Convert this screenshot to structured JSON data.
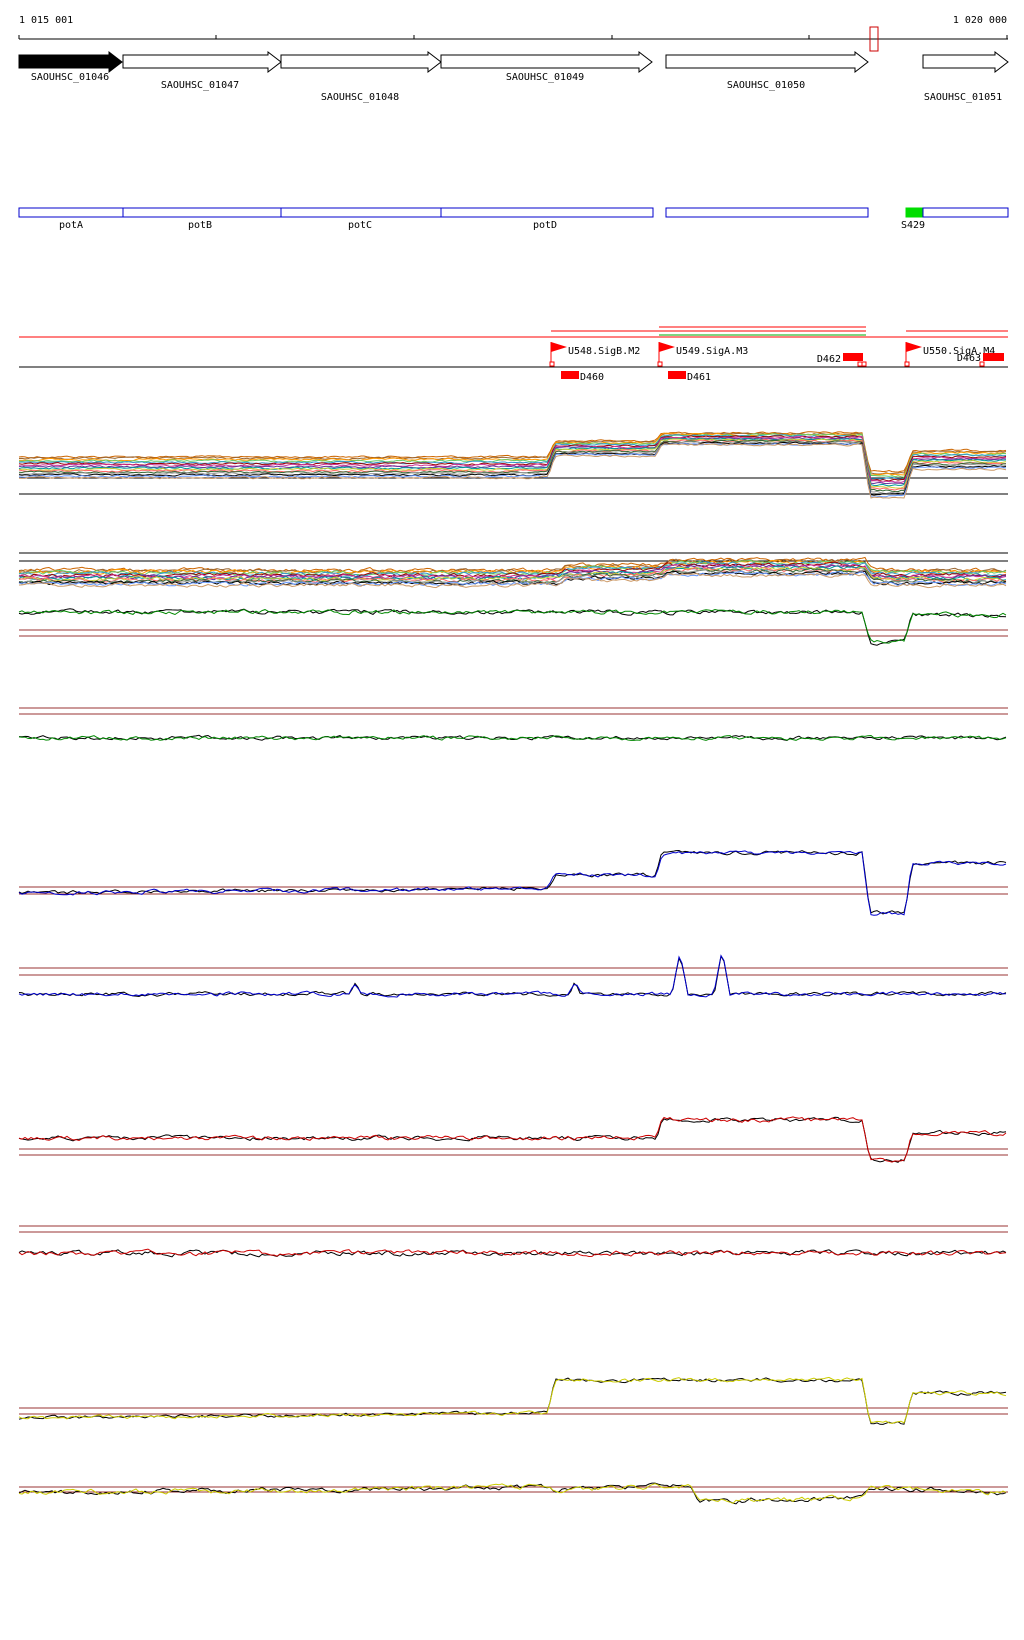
{
  "ruler": {
    "start_label": "1 015 001",
    "end_label": "1 020 000"
  },
  "genes": [
    {
      "name": "SAOUHSC_01046",
      "filled": true
    },
    {
      "name": "SAOUHSC_01047",
      "filled": false
    },
    {
      "name": "SAOUHSC_01048",
      "filled": false
    },
    {
      "name": "SAOUHSC_01049",
      "filled": false
    },
    {
      "name": "SAOUHSC_01050",
      "filled": false
    },
    {
      "name": "SAOUHSC_01051",
      "filled": false
    }
  ],
  "features": [
    {
      "name": "potA"
    },
    {
      "name": "potB"
    },
    {
      "name": "potC"
    },
    {
      "name": "potD"
    },
    {
      "name": ""
    }
  ],
  "s_feature": {
    "name": "S429"
  },
  "promoters": [
    {
      "name": "U548.SigB.M2"
    },
    {
      "name": "U549.SigA.M3"
    },
    {
      "name": "U550.SigA.M4"
    }
  ],
  "terminators": [
    {
      "name": "D460"
    },
    {
      "name": "D461"
    },
    {
      "name": "D462"
    },
    {
      "name": "D463"
    }
  ],
  "colors": {
    "gene_filled": "#000000",
    "feature_outline": "#0000cc",
    "s_feature": "#00dd00",
    "promoter": "#ff0000",
    "threshold": "#993333",
    "green_track": "#008800",
    "blue_track": "#0000cc",
    "red_track": "#cc0000",
    "yellow_track": "#cccc00"
  },
  "icons": {
    "marker": "red-outline-marker-icon",
    "promoter_flag": "flag-icon"
  }
}
